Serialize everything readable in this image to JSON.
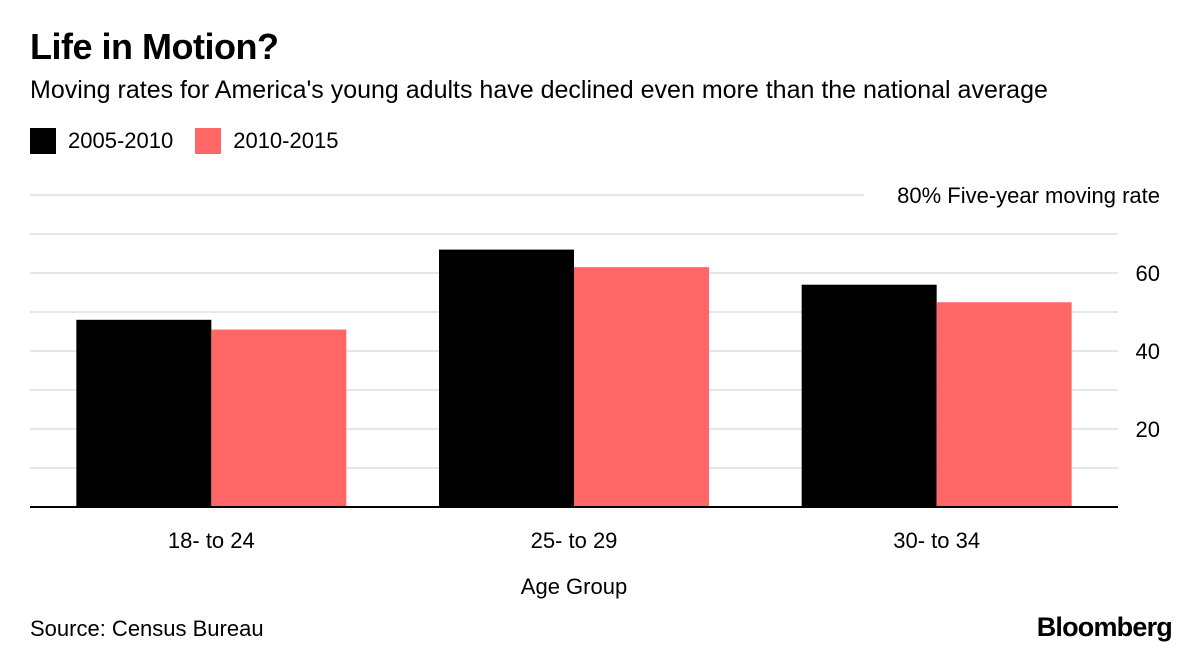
{
  "title": "Life in Motion?",
  "subtitle": "Moving rates for America's young adults have declined even more than the national average",
  "source": "Source: Census Bureau",
  "brand": "Bloomberg",
  "colors": {
    "series1": "#000000",
    "series2": "#ff6666",
    "grid": "#dddddd",
    "axis": "#000000"
  },
  "chart_data": {
    "type": "bar",
    "categories": [
      "18- to 24",
      "25- to 29",
      "30- to 34"
    ],
    "series": [
      {
        "name": "2005-2010",
        "values": [
          48,
          66,
          57
        ]
      },
      {
        "name": "2010-2015",
        "values": [
          45.5,
          61.5,
          52.5
        ]
      }
    ],
    "xlabel": "Age Group",
    "ylabel": "Five-year moving rate",
    "ylim": [
      0,
      80
    ],
    "yticks": [
      {
        "value": 20,
        "label": "20"
      },
      {
        "value": 40,
        "label": "40"
      },
      {
        "value": 60,
        "label": "60"
      },
      {
        "value": 80,
        "label": "80% Five-year moving rate"
      }
    ],
    "gridlines": [
      10,
      20,
      30,
      40,
      50,
      60,
      70,
      80
    ],
    "grid": true,
    "legend_position": "top-left"
  }
}
